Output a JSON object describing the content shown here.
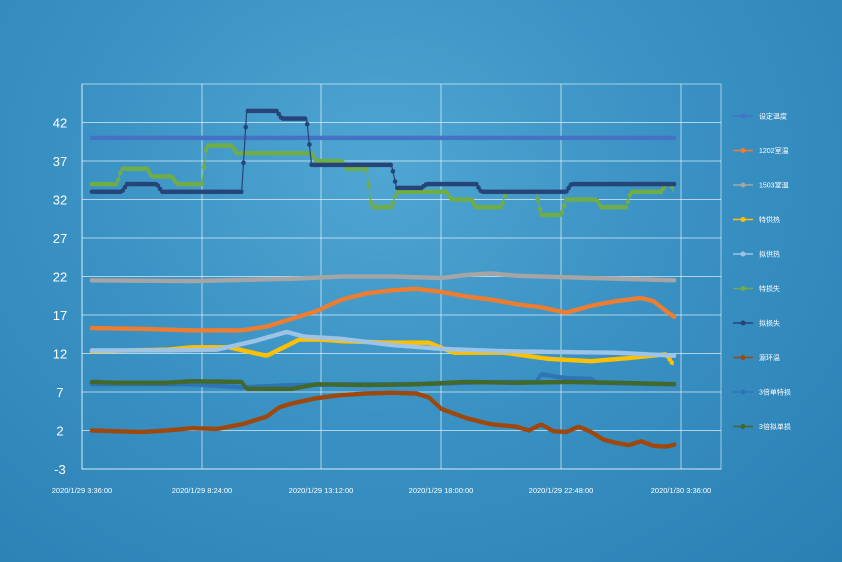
{
  "chart_data": {
    "type": "line",
    "title": "",
    "xlabel": "",
    "ylabel": "",
    "ylim": [
      -3,
      47
    ],
    "yticks": [
      -3,
      2,
      7,
      12,
      17,
      22,
      27,
      32,
      37,
      42
    ],
    "xticks": [
      "2020/1/29 3:36:00",
      "2020/1/29 8:24:00",
      "2020/1/29 13:12:00",
      "2020/1/29 18:00:00",
      "2020/1/29 22:48:00",
      "2020/1/30 3:36:00"
    ],
    "x_hours_range": [
      3.6,
      27.6
    ],
    "grid": true,
    "legend_position": "right",
    "series": [
      {
        "name": "设定温度",
        "color": "#4472c4",
        "points": [
          [
            4,
            40
          ],
          [
            27.4,
            40
          ]
        ]
      },
      {
        "name": "1202室温",
        "color": "#ed7d31",
        "points": [
          [
            4,
            15.3
          ],
          [
            6,
            15.2
          ],
          [
            8,
            15.0
          ],
          [
            10,
            15.0
          ],
          [
            11,
            15.5
          ],
          [
            12,
            16.5
          ],
          [
            13,
            17.5
          ],
          [
            14,
            19.0
          ],
          [
            15,
            19.8
          ],
          [
            16,
            20.2
          ],
          [
            17,
            20.4
          ],
          [
            18,
            20.0
          ],
          [
            19,
            19.4
          ],
          [
            20,
            19.0
          ],
          [
            21,
            18.4
          ],
          [
            22,
            18.0
          ],
          [
            23,
            17.3
          ],
          [
            24,
            18.2
          ],
          [
            25,
            18.8
          ],
          [
            26,
            19.2
          ],
          [
            26.5,
            18.8
          ],
          [
            27,
            17.5
          ],
          [
            27.4,
            16.6
          ]
        ]
      },
      {
        "name": "1503室温",
        "color": "#a5a5a5",
        "points": [
          [
            4,
            21.5
          ],
          [
            8,
            21.4
          ],
          [
            12,
            21.7
          ],
          [
            14,
            22.0
          ],
          [
            16,
            22.0
          ],
          [
            18,
            21.8
          ],
          [
            19,
            22.2
          ],
          [
            20,
            22.4
          ],
          [
            21,
            22.1
          ],
          [
            24,
            21.8
          ],
          [
            27.4,
            21.5
          ]
        ]
      },
      {
        "name": "特供热",
        "color": "#ffc000",
        "points": [
          [
            4,
            12.3
          ],
          [
            7,
            12.5
          ],
          [
            8,
            12.8
          ],
          [
            9.5,
            12.8
          ],
          [
            11,
            11.7
          ],
          [
            12.3,
            13.8
          ],
          [
            13.2,
            13.8
          ],
          [
            14,
            13.6
          ],
          [
            16,
            13.4
          ],
          [
            17.5,
            13.4
          ],
          [
            18.5,
            12.1
          ],
          [
            20.5,
            12.1
          ],
          [
            22.3,
            11.3
          ],
          [
            24,
            11.0
          ],
          [
            25.5,
            11.4
          ],
          [
            27,
            11.9
          ],
          [
            27.3,
            10.5
          ]
        ]
      },
      {
        "name": "拟供热",
        "color": "#9dc3e6",
        "points": [
          [
            4,
            12.4
          ],
          [
            7,
            12.4
          ],
          [
            9,
            12.5
          ],
          [
            10.5,
            13.6
          ],
          [
            11.8,
            14.8
          ],
          [
            12.5,
            14.2
          ],
          [
            14,
            13.9
          ],
          [
            16,
            13.1
          ],
          [
            18,
            12.6
          ],
          [
            20.5,
            12.3
          ],
          [
            22.5,
            12.2
          ],
          [
            25,
            12.1
          ],
          [
            27.4,
            11.7
          ]
        ]
      },
      {
        "name": "特损失",
        "color": "#70ad47",
        "points": [
          [
            4,
            34
          ],
          [
            5,
            34
          ],
          [
            5.2,
            36
          ],
          [
            6.2,
            36
          ],
          [
            6.4,
            35
          ],
          [
            7.2,
            35
          ],
          [
            7.4,
            34
          ],
          [
            8.4,
            34
          ],
          [
            8.6,
            39
          ],
          [
            9.6,
            39
          ],
          [
            9.8,
            38
          ],
          [
            12.8,
            38
          ],
          [
            13,
            37
          ],
          [
            14,
            37
          ],
          [
            14.2,
            36
          ],
          [
            15,
            36
          ],
          [
            15.2,
            31
          ],
          [
            16,
            31
          ],
          [
            16.2,
            33
          ],
          [
            18.2,
            33
          ],
          [
            18.4,
            32
          ],
          [
            19.2,
            32
          ],
          [
            19.4,
            31
          ],
          [
            20.4,
            31
          ],
          [
            20.6,
            33
          ],
          [
            21.8,
            33
          ],
          [
            22,
            30
          ],
          [
            22.8,
            30
          ],
          [
            23,
            32
          ],
          [
            24.2,
            32
          ],
          [
            24.4,
            31
          ],
          [
            25.4,
            31
          ],
          [
            25.6,
            33
          ],
          [
            26.8,
            33
          ],
          [
            27,
            34
          ],
          [
            27.2,
            34
          ],
          [
            27.3,
            33
          ]
        ]
      },
      {
        "name": "拟损失",
        "color": "#264478",
        "points": [
          [
            4,
            33
          ],
          [
            5.2,
            33
          ],
          [
            5.4,
            34
          ],
          [
            6.6,
            34
          ],
          [
            6.8,
            33
          ],
          [
            10,
            33
          ],
          [
            10.2,
            43.5
          ],
          [
            11.4,
            43.5
          ],
          [
            11.6,
            42.5
          ],
          [
            12.6,
            42.5
          ],
          [
            12.8,
            36.5
          ],
          [
            16,
            36.5
          ],
          [
            16.2,
            33.5
          ],
          [
            17.2,
            33.5
          ],
          [
            17.4,
            34
          ],
          [
            19.4,
            34
          ],
          [
            19.6,
            33
          ],
          [
            23,
            33
          ],
          [
            23.2,
            34
          ],
          [
            26.8,
            34
          ],
          [
            27.4,
            34
          ]
        ]
      },
      {
        "name": "源环温",
        "color": "#9e480e",
        "points": [
          [
            4,
            2.0
          ],
          [
            5,
            1.9
          ],
          [
            6,
            1.8
          ],
          [
            7,
            2.0
          ],
          [
            8,
            2.3
          ],
          [
            9,
            2.2
          ],
          [
            10,
            2.8
          ],
          [
            11,
            3.8
          ],
          [
            11.5,
            5.0
          ],
          [
            12,
            5.5
          ],
          [
            13,
            6.2
          ],
          [
            14,
            6.6
          ],
          [
            15,
            6.8
          ],
          [
            16,
            6.9
          ],
          [
            17,
            6.8
          ],
          [
            17.5,
            6.3
          ],
          [
            18,
            4.8
          ],
          [
            19,
            3.6
          ],
          [
            20,
            2.8
          ],
          [
            21,
            2.5
          ],
          [
            21.5,
            2.0
          ],
          [
            22,
            2.8
          ],
          [
            22.5,
            1.9
          ],
          [
            23,
            1.8
          ],
          [
            23.5,
            2.5
          ],
          [
            24,
            1.8
          ],
          [
            24.5,
            0.8
          ],
          [
            25,
            0.4
          ],
          [
            25.5,
            0.1
          ],
          [
            26,
            0.6
          ],
          [
            26.5,
            0.0
          ],
          [
            27,
            -0.1
          ],
          [
            27.4,
            0.2
          ]
        ]
      },
      {
        "name": "3倍单特损",
        "color": "#2e75b6",
        "points": [
          [
            4,
            8.0
          ],
          [
            6,
            8.0
          ],
          [
            8,
            8.0
          ],
          [
            10,
            7.6
          ],
          [
            12,
            7.9
          ],
          [
            14,
            8.0
          ],
          [
            16,
            8.0
          ],
          [
            18,
            8.1
          ],
          [
            20,
            8.3
          ],
          [
            21.8,
            8.3
          ],
          [
            22,
            9.3
          ],
          [
            23,
            8.8
          ],
          [
            24,
            8.7
          ],
          [
            24.2,
            8.2
          ],
          [
            27.4,
            8.0
          ]
        ]
      },
      {
        "name": "3倍拟单损",
        "color": "#43682b",
        "points": [
          [
            4,
            8.3
          ],
          [
            5,
            8.2
          ],
          [
            7,
            8.2
          ],
          [
            8,
            8.4
          ],
          [
            10,
            8.3
          ],
          [
            10.2,
            7.4
          ],
          [
            12,
            7.4
          ],
          [
            13,
            8.0
          ],
          [
            15,
            7.9
          ],
          [
            17,
            8.0
          ],
          [
            19,
            8.3
          ],
          [
            21,
            8.2
          ],
          [
            23,
            8.3
          ],
          [
            25,
            8.2
          ],
          [
            27.4,
            8.0
          ]
        ]
      }
    ]
  }
}
